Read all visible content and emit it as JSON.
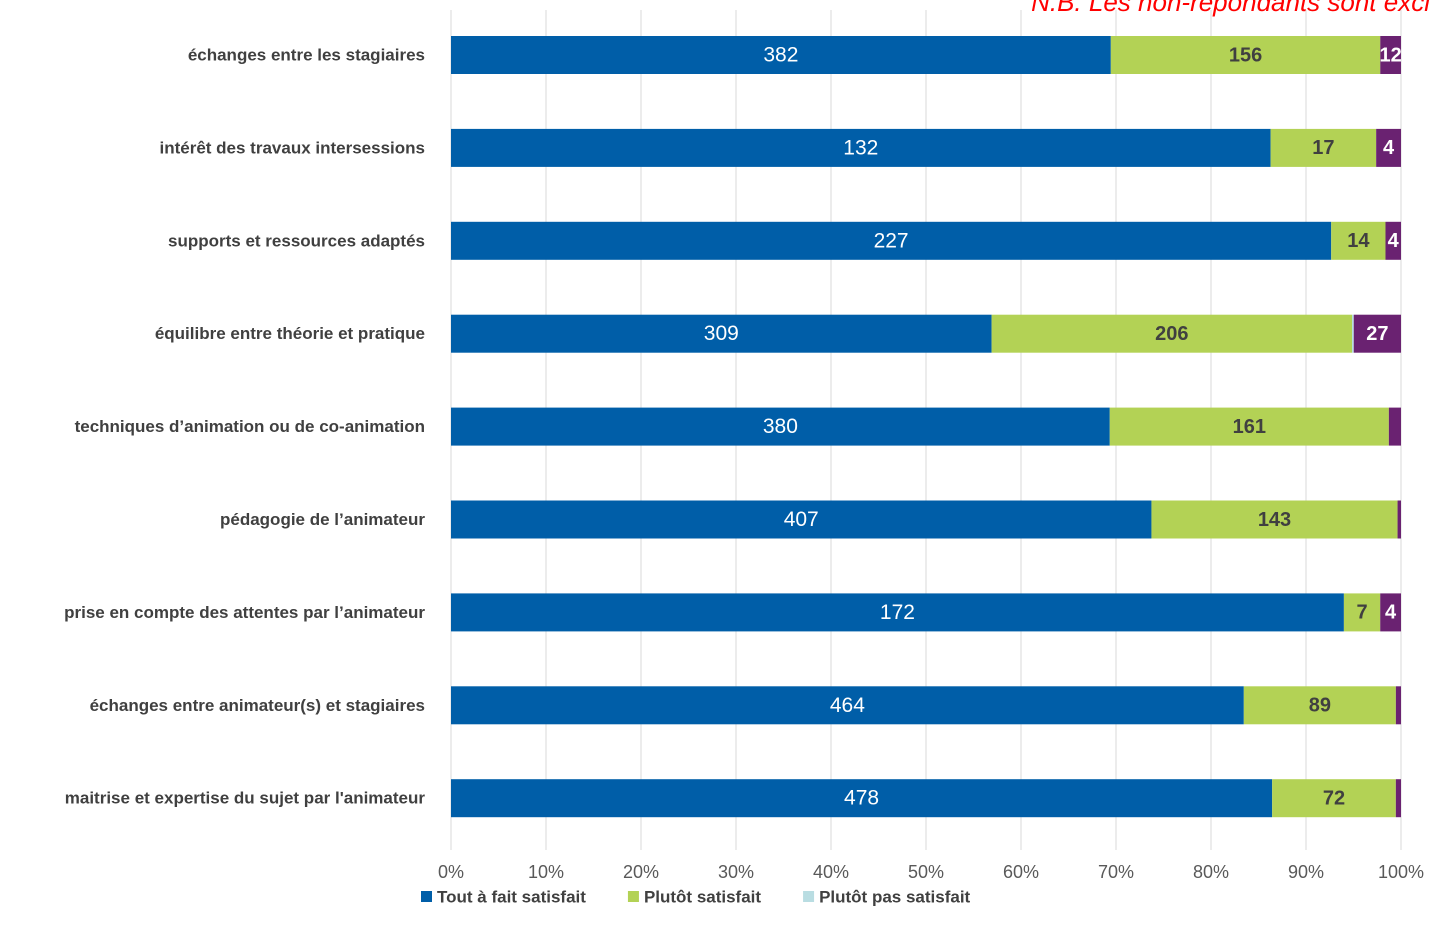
{
  "chart_data": {
    "type": "stacked-bar-horizontal-100",
    "annotation": "N.B. Les non-répondants sont excl",
    "categories": [
      "échanges entre les stagiaires",
      "intérêt des travaux intersessions",
      "supports et ressources adaptés",
      "équilibre entre théorie et pratique",
      "techniques d’animation ou de co-animation",
      "pédagogie de l’animateur",
      "prise en compte des attentes par l’animateur",
      "échanges entre animateur(s) et stagiaires",
      "maitrise et expertise du sujet par l'animateur"
    ],
    "series": [
      {
        "name": "Tout à fait satisfait",
        "color": "#005ea8",
        "values": [
          382,
          132,
          227,
          309,
          380,
          407,
          172,
          464,
          478
        ]
      },
      {
        "name": "Plutôt satisfait",
        "color": "#b3d255",
        "values": [
          156,
          17,
          14,
          206,
          161,
          143,
          7,
          89,
          72
        ]
      },
      {
        "name": "Plutôt pas satisfait",
        "color": "#b9dde2",
        "values": [
          0,
          0,
          0,
          1,
          0,
          0,
          0,
          0,
          0
        ]
      },
      {
        "color": "#6a2271",
        "values": [
          12,
          4,
          4,
          27,
          7,
          2,
          4,
          3,
          3
        ]
      }
    ],
    "xlim": [
      0,
      100
    ],
    "xticks": [
      {
        "value": 0,
        "label": "0%"
      },
      {
        "value": 10,
        "label": "10%"
      },
      {
        "value": 20,
        "label": "20%"
      },
      {
        "value": 30,
        "label": "30%"
      },
      {
        "value": 40,
        "label": "40%"
      },
      {
        "value": 50,
        "label": "50%"
      },
      {
        "value": 60,
        "label": "60%"
      },
      {
        "value": 70,
        "label": "70%"
      },
      {
        "value": 80,
        "label": "80%"
      },
      {
        "value": 90,
        "label": "90%"
      },
      {
        "value": 100,
        "label": "100%"
      }
    ],
    "grid": true,
    "legend": "bottom"
  }
}
